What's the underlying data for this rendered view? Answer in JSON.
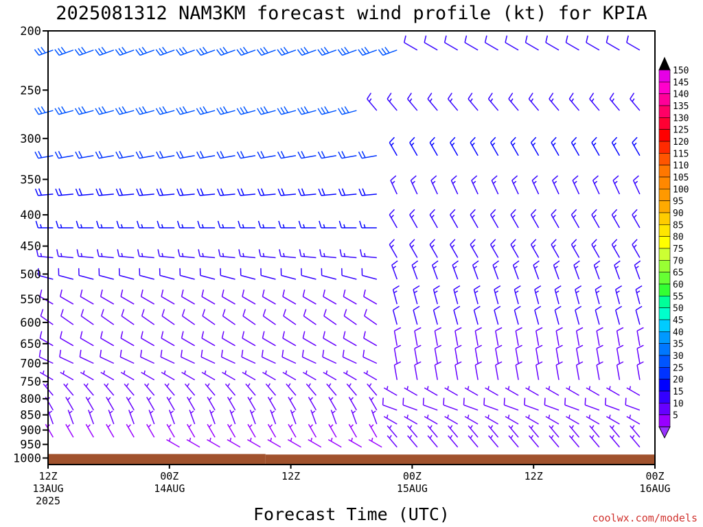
{
  "chart_data": {
    "type": "wind_barbs",
    "title": "2025081312 NAM3KM forecast wind profile (kt) for KPIA",
    "xlabel": "Forecast Time (UTC)",
    "credit": "coolwx.com/models",
    "y_axis": {
      "ticks": [
        "200",
        "250",
        "300",
        "350",
        "400",
        "450",
        "500",
        "550",
        "600",
        "650",
        "700",
        "750",
        "800",
        "850",
        "900",
        "950",
        "1000"
      ],
      "values": [
        200,
        250,
        300,
        350,
        400,
        450,
        500,
        550,
        600,
        650,
        700,
        750,
        800,
        850,
        900,
        950,
        1000
      ],
      "range_hpa": [
        200,
        1025
      ],
      "scale": "log"
    },
    "x_axis": {
      "range_hours": [
        0,
        60
      ],
      "ticks": [
        {
          "hour": 0,
          "lines": [
            "12Z",
            "13AUG",
            "2025"
          ]
        },
        {
          "hour": 12,
          "lines": [
            "00Z",
            "14AUG"
          ]
        },
        {
          "hour": 24,
          "lines": [
            "12Z"
          ]
        },
        {
          "hour": 36,
          "lines": [
            "00Z",
            "15AUG"
          ]
        },
        {
          "hour": 48,
          "lines": [
            "12Z"
          ]
        },
        {
          "hour": 60,
          "lines": [
            "00Z",
            "16AUG"
          ]
        }
      ]
    },
    "colorbar": {
      "labels": [
        "150",
        "145",
        "140",
        "135",
        "130",
        "125",
        "120",
        "115",
        "110",
        "105",
        "100",
        "95",
        "90",
        "85",
        "80",
        "75",
        "70",
        "65",
        "60",
        "55",
        "50",
        "45",
        "40",
        "35",
        "30",
        "25",
        "20",
        "15",
        "10",
        "5"
      ],
      "colors": [
        "#e600e6",
        "#ff00cc",
        "#ff0099",
        "#ff0066",
        "#ff0033",
        "#ff0000",
        "#ff2a00",
        "#ff5500",
        "#ff7700",
        "#ff8800",
        "#ff9900",
        "#ffaa00",
        "#ffcc00",
        "#ffe600",
        "#ffff00",
        "#ccff33",
        "#99ff33",
        "#66ff33",
        "#33ff33",
        "#00ff99",
        "#00ffcc",
        "#00ccff",
        "#0099ff",
        "#0077ff",
        "#0055ff",
        "#0033ff",
        "#0000ff",
        "#3300ff",
        "#6600ff",
        "#9900ff"
      ],
      "top_arrow_color": "#000000",
      "bottom_arrow_color": "#9933ff"
    },
    "terrain_color": "#a0522d",
    "surface_pressure": [
      {
        "from_hour": 0,
        "to_hour": 21.5,
        "hpa": 985
      },
      {
        "from_hour": 21.5,
        "to_hour": 60,
        "hpa": 987
      }
    ],
    "levels": [
      {
        "hpa": 215,
        "from": 0.5,
        "to": 36,
        "dir": 250,
        "spd": 30,
        "dir2": 300,
        "spd2": 12,
        "from2": 36.5,
        "to2": 60
      },
      {
        "hpa": 270,
        "from": 0.5,
        "to": 32,
        "dir": 255,
        "spd": 28,
        "dir2": 320,
        "spd2": 14,
        "from2": 32.5,
        "to2": 60
      },
      {
        "hpa": 320,
        "from": 0.5,
        "to": 34,
        "dir": 260,
        "spd": 22,
        "dir2": 330,
        "spd2": 16,
        "from2": 34.5,
        "to2": 60
      },
      {
        "hpa": 370,
        "from": 0.5,
        "to": 34,
        "dir": 265,
        "spd": 18,
        "dir2": 335,
        "spd2": 14,
        "from2": 34.5,
        "to2": 60
      },
      {
        "hpa": 420,
        "from": 0.5,
        "to": 34,
        "dir": 270,
        "spd": 16,
        "dir2": 330,
        "spd2": 14,
        "from2": 34.5,
        "to2": 60
      },
      {
        "hpa": 470,
        "from": 0.5,
        "to": 34,
        "dir": 275,
        "spd": 14,
        "dir2": 330,
        "spd2": 14,
        "from2": 34.5,
        "to2": 60
      },
      {
        "hpa": 510,
        "from": 0.5,
        "to": 34,
        "dir": 285,
        "spd": 12,
        "dir2": 340,
        "spd2": 14,
        "from2": 34.5,
        "to2": 60
      },
      {
        "hpa": 560,
        "from": 0.5,
        "to": 34,
        "dir": 300,
        "spd": 10,
        "dir2": 345,
        "spd2": 14,
        "from2": 34.5,
        "to2": 60
      },
      {
        "hpa": 605,
        "from": 0.5,
        "to": 34,
        "dir": 305,
        "spd": 9,
        "dir2": 345,
        "spd2": 12,
        "from2": 34.5,
        "to2": 60
      },
      {
        "hpa": 655,
        "from": 0.5,
        "to": 34,
        "dir": 300,
        "spd": 8,
        "dir2": 350,
        "spd2": 10,
        "from2": 34.5,
        "to2": 60
      },
      {
        "hpa": 700,
        "from": 0.5,
        "to": 34,
        "dir": 295,
        "spd": 8,
        "dir2": 350,
        "spd2": 9,
        "from2": 34.5,
        "to2": 60
      },
      {
        "hpa": 745,
        "from": 0.5,
        "to": 34,
        "dir": 300,
        "spd": 7,
        "dir2": 350,
        "spd2": 8,
        "from2": 34.5,
        "to2": 60
      },
      {
        "hpa": 790,
        "from": 0.5,
        "to": 34,
        "dir": 320,
        "spd": 6,
        "dir2": 300,
        "spd2": 7,
        "from2": 34.5,
        "to2": 60
      },
      {
        "hpa": 835,
        "from": 0.5,
        "to": 34,
        "dir": 330,
        "spd": 6,
        "dir2": 290,
        "spd2": 8,
        "from2": 34.5,
        "to2": 60
      },
      {
        "hpa": 880,
        "from": 0.5,
        "to": 34,
        "dir": 340,
        "spd": 6,
        "dir2": 300,
        "spd2": 7,
        "from2": 34.5,
        "to2": 60
      },
      {
        "hpa": 925,
        "from": 0.5,
        "to": 34,
        "dir": 330,
        "spd": 5,
        "dir2": 320,
        "spd2": 6,
        "from2": 34.5,
        "to2": 60
      },
      {
        "hpa": 960,
        "from": 13,
        "to": 34,
        "dir": 300,
        "spd": 5,
        "dir2": 320,
        "spd2": 6,
        "from2": 34.5,
        "to2": 60
      }
    ],
    "spacing_hours": 2
  }
}
